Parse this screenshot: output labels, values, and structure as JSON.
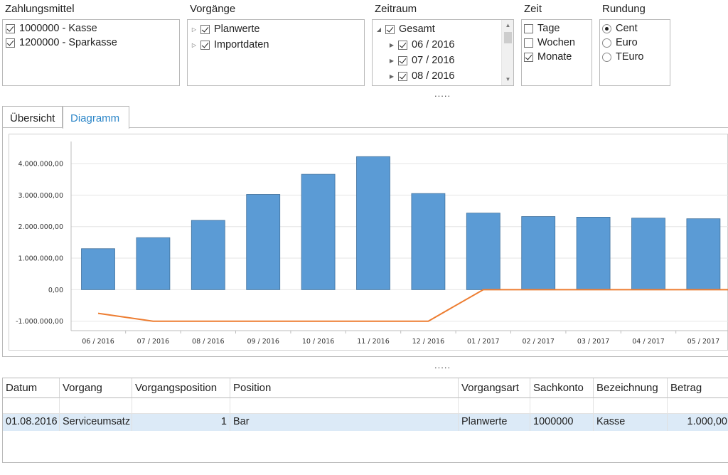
{
  "filters": {
    "zahlungsmittel": {
      "title": "Zahlungsmittel",
      "items": [
        {
          "label": "1000000 - Kasse",
          "checked": true
        },
        {
          "label": "1200000 - Sparkasse",
          "checked": true
        }
      ]
    },
    "vorgaenge": {
      "title": "Vorgänge",
      "items": [
        {
          "label": "Planwerte",
          "checked": true
        },
        {
          "label": "Importdaten",
          "checked": true
        }
      ]
    },
    "zeitraum": {
      "title": "Zeitraum",
      "root": {
        "label": "Gesamt",
        "checked": true
      },
      "items": [
        {
          "label": "06 / 2016",
          "checked": true
        },
        {
          "label": "07 / 2016",
          "checked": true
        },
        {
          "label": "08 / 2016",
          "checked": true
        }
      ]
    },
    "zeit": {
      "title": "Zeit",
      "items": [
        {
          "label": "Tage",
          "checked": false
        },
        {
          "label": "Wochen",
          "checked": false
        },
        {
          "label": "Monate",
          "checked": true
        }
      ]
    },
    "rundung": {
      "title": "Rundung",
      "items": [
        {
          "label": "Cent",
          "selected": true
        },
        {
          "label": "Euro",
          "selected": false
        },
        {
          "label": "TEuro",
          "selected": false
        }
      ]
    }
  },
  "splitter_dots": ".....",
  "tabs": [
    {
      "label": "Übersicht",
      "active": false
    },
    {
      "label": "Diagramm",
      "active": true
    }
  ],
  "chart_data": {
    "type": "bar",
    "title": "",
    "xlabel": "",
    "ylabel": "",
    "categories": [
      "06 / 2016",
      "07 / 2016",
      "08 / 2016",
      "09 / 2016",
      "10 / 2016",
      "11 / 2016",
      "12 / 2016",
      "01 / 2017",
      "02 / 2017",
      "03 / 2017",
      "04 / 2017",
      "05 / 2017"
    ],
    "series": [
      {
        "type": "bar",
        "color": "#5b9bd5",
        "values": [
          1300000,
          1650000,
          2200000,
          3020000,
          3660000,
          4220000,
          3050000,
          2430000,
          2320000,
          2300000,
          2270000,
          2250000
        ]
      },
      {
        "type": "line",
        "color": "#ed7d31",
        "values": [
          -750000,
          -1000000,
          -1000000,
          -1000000,
          -1000000,
          -1000000,
          -1000000,
          0,
          0,
          0,
          0,
          0
        ]
      }
    ],
    "y_ticks": [
      "-1.000.000,00",
      "0,00",
      "1.000.000,00",
      "2.000.000,00",
      "3.000.000,00",
      "4.000.000,00"
    ],
    "ylim": [
      -1300000,
      4700000
    ],
    "grid": true,
    "legend": "none"
  },
  "table": {
    "columns": [
      "Datum",
      "Vorgang",
      "Vorgangsposition",
      "Position",
      "Vorgangsart",
      "Sachkonto",
      "Bezeichnung",
      "Betrag"
    ],
    "rows": [
      {
        "datum": "01.08.2016",
        "vorgang": "Serviceumsatz",
        "vorgangsposition": "1",
        "position": "Bar",
        "vorgangsart": "Planwerte",
        "sachkonto": "1000000",
        "bezeichnung": "Kasse",
        "betrag": "1.000,00"
      }
    ]
  }
}
